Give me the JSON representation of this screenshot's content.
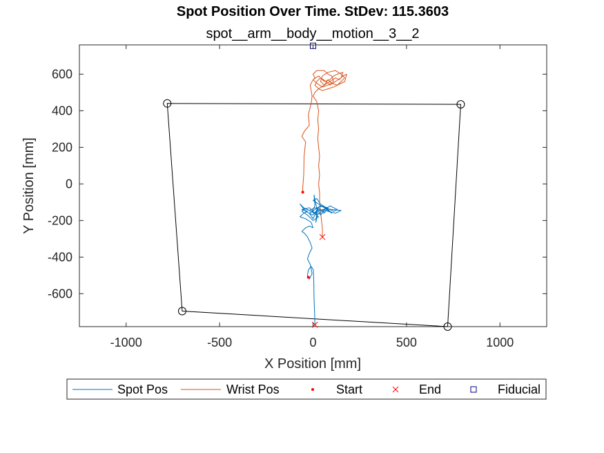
{
  "chart_data": {
    "type": "line",
    "title": "Spot Position Over Time. StDev: 115.3603",
    "subtitle": "spot__arm__body__motion__3__2",
    "xlabel": "X Position [mm]",
    "ylabel": "Y Position [mm]",
    "xlim": [
      -1250,
      1250
    ],
    "ylim": [
      -780,
      760
    ],
    "xticks": [
      -1000,
      -500,
      0,
      500,
      1000
    ],
    "yticks": [
      -600,
      -400,
      -200,
      0,
      200,
      400,
      600
    ],
    "grid": false,
    "legend_position": "bottom-outside",
    "legend": [
      {
        "name": "Spot Pos",
        "type": "line",
        "color": "#0072BD"
      },
      {
        "name": "Wrist Pos",
        "type": "line",
        "color": "#D95319"
      },
      {
        "name": "Start",
        "type": "dot",
        "color": "#FF0000"
      },
      {
        "name": "End",
        "type": "x",
        "color": "#FF0000"
      },
      {
        "name": "Fiducial",
        "type": "square",
        "color": "#000080"
      }
    ],
    "boundary": {
      "color": "#000000",
      "corners": [
        [
          -780,
          440
        ],
        [
          790,
          435
        ],
        [
          720,
          -780
        ],
        [
          -700,
          -695
        ]
      ]
    },
    "spot_path": [
      [
        10,
        -770
      ],
      [
        8,
        -700
      ],
      [
        5,
        -620
      ],
      [
        4,
        -540
      ],
      [
        2,
        -470
      ],
      [
        -10,
        -450
      ],
      [
        -25,
        -470
      ],
      [
        -30,
        -500
      ],
      [
        -20,
        -520
      ],
      [
        -5,
        -490
      ],
      [
        -15,
        -440
      ],
      [
        -30,
        -410
      ],
      [
        -20,
        -380
      ],
      [
        -5,
        -350
      ],
      [
        -15,
        -320
      ],
      [
        -30,
        -290
      ],
      [
        -45,
        -270
      ],
      [
        -60,
        -260
      ],
      [
        -40,
        -240
      ],
      [
        -20,
        -230
      ],
      [
        0,
        -240
      ],
      [
        -10,
        -210
      ],
      [
        -40,
        -190
      ],
      [
        -70,
        -180
      ],
      [
        -50,
        -160
      ],
      [
        -30,
        -150
      ],
      [
        -60,
        -140
      ],
      [
        -20,
        -130
      ],
      [
        10,
        -160
      ],
      [
        30,
        -140
      ],
      [
        60,
        -150
      ],
      [
        40,
        -170
      ],
      [
        20,
        -130
      ],
      [
        50,
        -120
      ],
      [
        80,
        -140
      ],
      [
        100,
        -160
      ],
      [
        60,
        -130
      ],
      [
        30,
        -110
      ],
      [
        0,
        -90
      ],
      [
        20,
        -80
      ],
      [
        40,
        -110
      ],
      [
        70,
        -130
      ],
      [
        110,
        -150
      ],
      [
        130,
        -140
      ],
      [
        90,
        -120
      ],
      [
        50,
        -150
      ],
      [
        20,
        -170
      ],
      [
        -10,
        -150
      ],
      [
        -50,
        -130
      ],
      [
        -70,
        -110
      ],
      [
        -40,
        -150
      ],
      [
        0,
        -170
      ],
      [
        30,
        -130
      ],
      [
        60,
        -160
      ],
      [
        80,
        -130
      ],
      [
        40,
        -120
      ],
      [
        10,
        -140
      ],
      [
        -20,
        -160
      ],
      [
        0,
        -190
      ],
      [
        20,
        -150
      ],
      [
        15,
        -210
      ],
      [
        25,
        -160
      ],
      [
        5,
        -60
      ],
      [
        10,
        -120
      ],
      [
        -5,
        -150
      ],
      [
        30,
        -180
      ],
      [
        0,
        -200
      ],
      [
        -30,
        -170
      ],
      [
        -60,
        -150
      ],
      [
        -45,
        -135
      ],
      [
        -20,
        -145
      ],
      [
        10,
        -130
      ],
      [
        40,
        -145
      ],
      [
        70,
        -135
      ],
      [
        100,
        -140
      ],
      [
        150,
        -145
      ],
      [
        120,
        -160
      ],
      [
        80,
        -150
      ],
      [
        50,
        -140
      ],
      [
        30,
        -150
      ]
    ],
    "wrist_path": [
      [
        -55,
        -45
      ],
      [
        -55,
        -20
      ],
      [
        -50,
        50
      ],
      [
        -48,
        150
      ],
      [
        -40,
        230
      ],
      [
        -60,
        260
      ],
      [
        -45,
        290
      ],
      [
        -20,
        320
      ],
      [
        -25,
        380
      ],
      [
        -10,
        440
      ],
      [
        -5,
        480
      ],
      [
        -10,
        510
      ],
      [
        -15,
        540
      ],
      [
        -5,
        560
      ],
      [
        10,
        580
      ],
      [
        0,
        600
      ],
      [
        20,
        620
      ],
      [
        60,
        620
      ],
      [
        80,
        600
      ],
      [
        100,
        590
      ],
      [
        110,
        560
      ],
      [
        80,
        540
      ],
      [
        50,
        530
      ],
      [
        20,
        550
      ],
      [
        0,
        570
      ],
      [
        30,
        590
      ],
      [
        60,
        560
      ],
      [
        90,
        570
      ],
      [
        110,
        590
      ],
      [
        130,
        600
      ],
      [
        160,
        610
      ],
      [
        150,
        580
      ],
      [
        120,
        560
      ],
      [
        90,
        540
      ],
      [
        70,
        560
      ],
      [
        40,
        580
      ],
      [
        20,
        560
      ],
      [
        10,
        540
      ],
      [
        30,
        520
      ],
      [
        60,
        540
      ],
      [
        80,
        570
      ],
      [
        100,
        550
      ],
      [
        130,
        540
      ],
      [
        150,
        560
      ],
      [
        170,
        580
      ],
      [
        150,
        600
      ],
      [
        120,
        620
      ],
      [
        80,
        610
      ],
      [
        50,
        590
      ],
      [
        40,
        560
      ],
      [
        60,
        540
      ],
      [
        90,
        560
      ],
      [
        120,
        580
      ],
      [
        140,
        570
      ],
      [
        160,
        590
      ],
      [
        180,
        600
      ],
      [
        170,
        560
      ],
      [
        140,
        545
      ],
      [
        110,
        530
      ],
      [
        80,
        520
      ],
      [
        50,
        510
      ],
      [
        30,
        520
      ],
      [
        10,
        500
      ],
      [
        0,
        480
      ],
      [
        20,
        450
      ],
      [
        30,
        400
      ],
      [
        25,
        350
      ],
      [
        30,
        300
      ],
      [
        25,
        250
      ],
      [
        30,
        200
      ],
      [
        35,
        150
      ],
      [
        30,
        100
      ],
      [
        35,
        50
      ],
      [
        30,
        0
      ],
      [
        35,
        -50
      ],
      [
        35,
        -100
      ],
      [
        40,
        -150
      ],
      [
        45,
        -200
      ],
      [
        50,
        -240
      ],
      [
        50,
        -290
      ]
    ],
    "spot_start": [
      -25,
      -510
    ],
    "spot_end": [
      10,
      -770
    ],
    "wrist_start": [
      -55,
      -45
    ],
    "wrist_end": [
      50,
      -290
    ],
    "fiducial": [
      0,
      755
    ]
  }
}
